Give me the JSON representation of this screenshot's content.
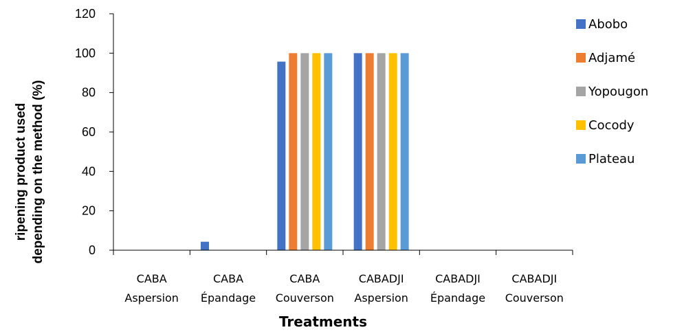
{
  "chart_data": {
    "type": "bar",
    "title": "",
    "xlabel": "Treatments",
    "ylabel_lines": [
      "ripening product used",
      "depending on the method (%)"
    ],
    "ylim": [
      0,
      120
    ],
    "yticks": [
      0,
      20,
      40,
      60,
      80,
      100,
      120
    ],
    "grid": false,
    "legend_position": "right",
    "categories": [
      [
        "CABA",
        "Aspersion"
      ],
      [
        "CABA",
        "Épandage"
      ],
      [
        "CABA",
        "Couverson"
      ],
      [
        "CABADJI",
        "Aspersion"
      ],
      [
        "CABADJI",
        "Épandage"
      ],
      [
        "CABADJI",
        "Couverson"
      ]
    ],
    "series": [
      {
        "name": "Abobo",
        "color": "#4472C4",
        "values": [
          0,
          4.3,
          95.7,
          100,
          0,
          0
        ]
      },
      {
        "name": "Adjamé",
        "color": "#ED7D31",
        "values": [
          0,
          0,
          100,
          100,
          0,
          0
        ]
      },
      {
        "name": "Yopougon",
        "color": "#A5A5A5",
        "values": [
          0,
          0,
          100,
          100,
          0,
          0
        ]
      },
      {
        "name": "Cocody",
        "color": "#FFC000",
        "values": [
          0,
          0,
          100,
          100,
          0,
          0
        ]
      },
      {
        "name": "Plateau",
        "color": "#5B9BD5",
        "values": [
          0,
          0,
          100,
          100,
          0,
          0
        ]
      }
    ]
  }
}
